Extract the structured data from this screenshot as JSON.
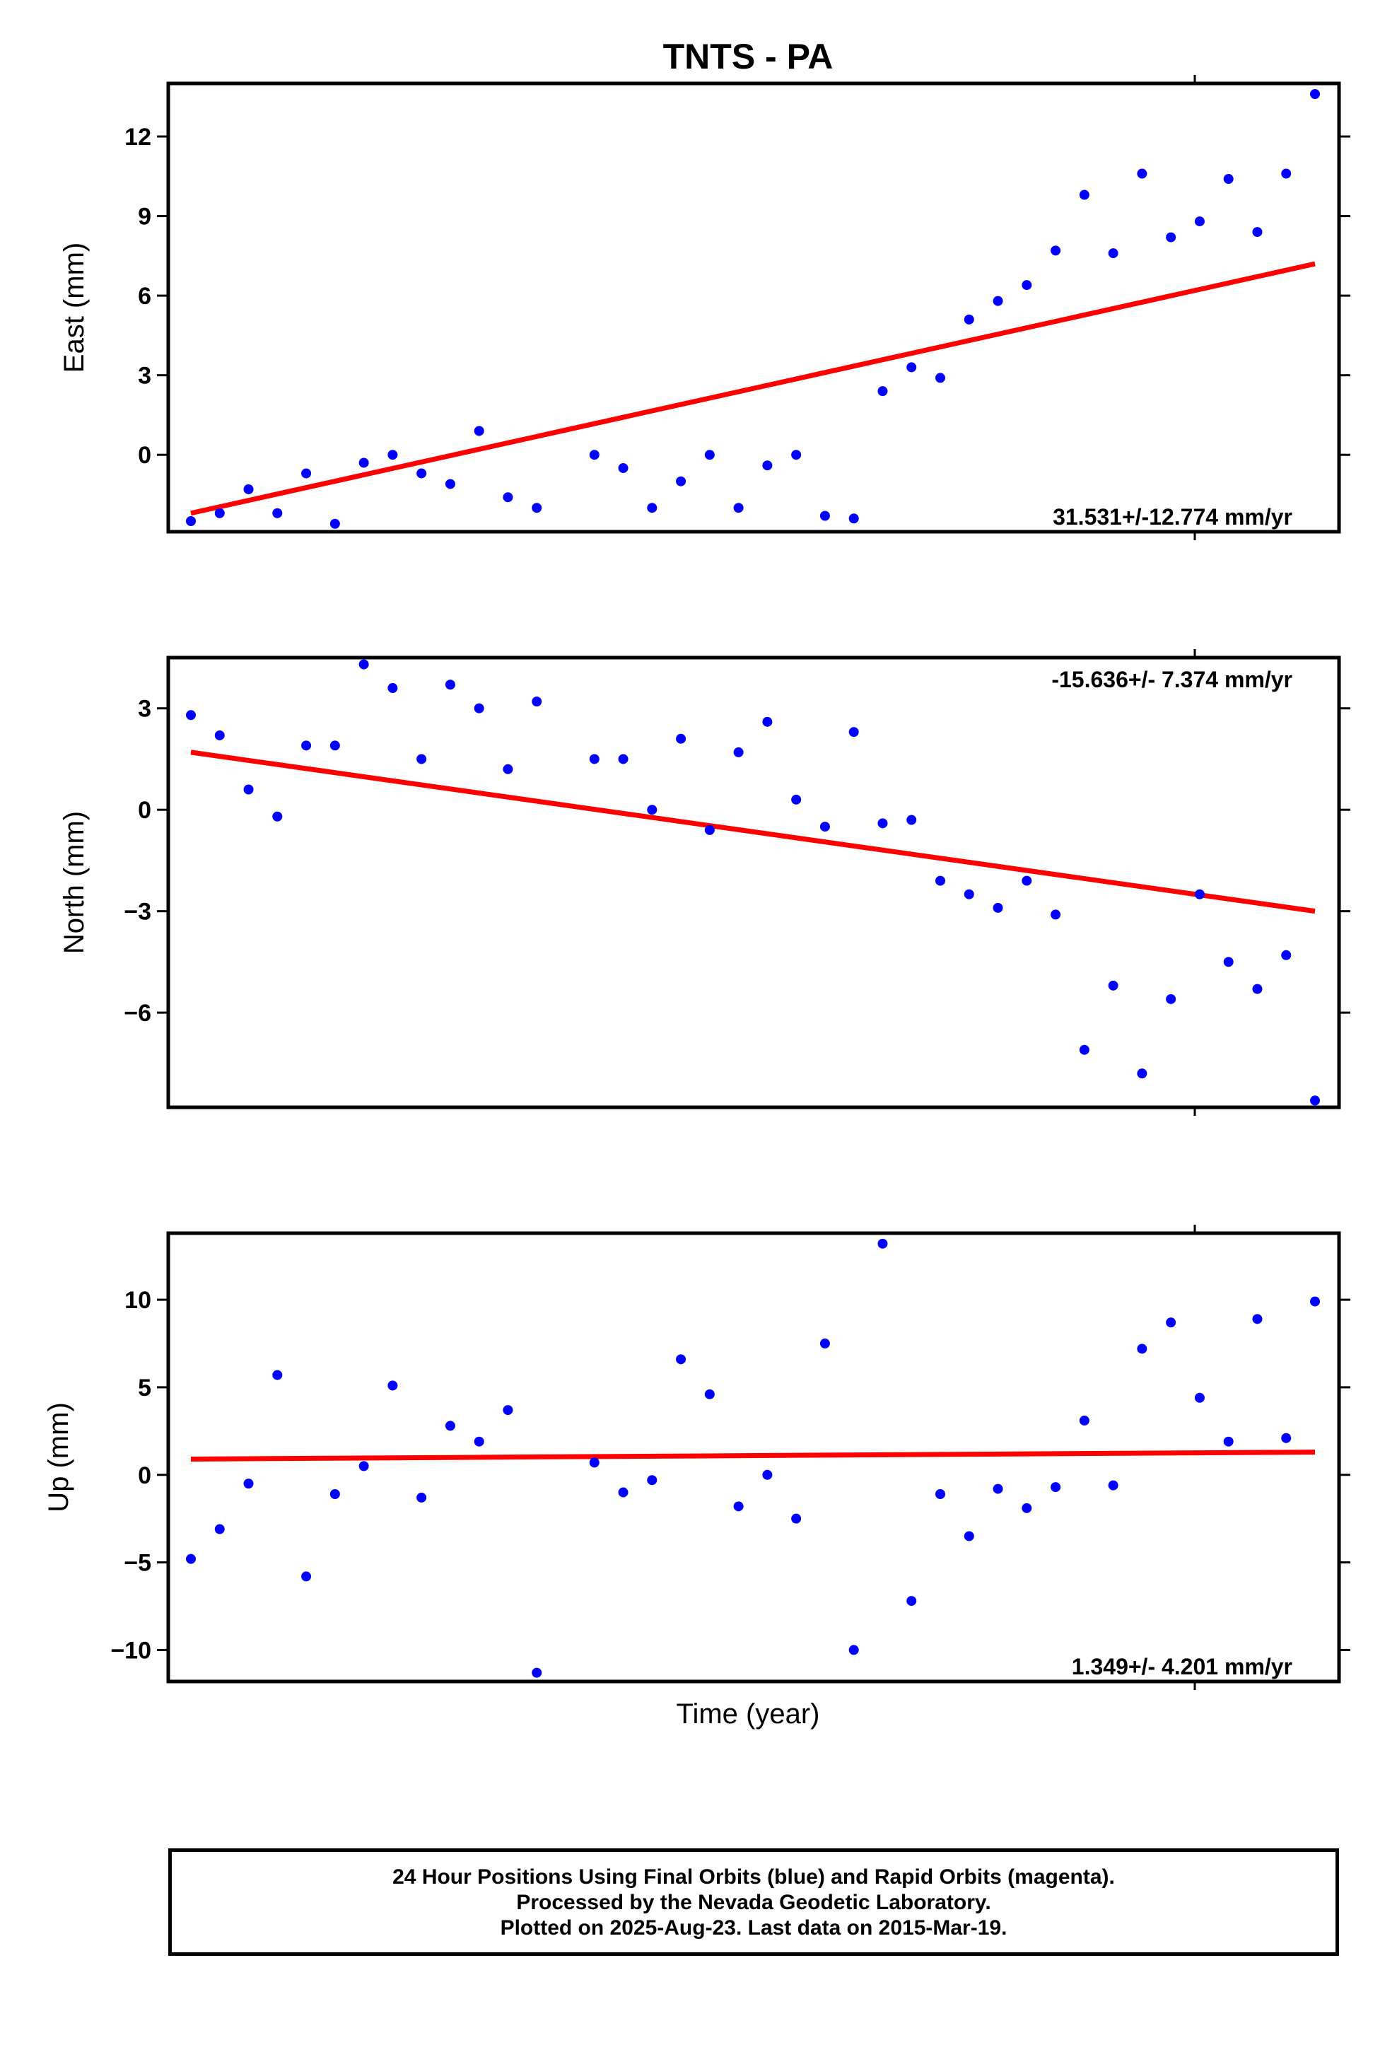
{
  "title": "TNTS - PA",
  "xlabel": "Time (year)",
  "caption": [
    "24 Hour Positions Using Final Orbits (blue) and Rapid Orbits (magenta).",
    "Processed by the Nevada Geodetic Laboratory.",
    "Plotted on 2025-Aug-23. Last data on 2015-Mar-19."
  ],
  "colors": {
    "data": "#0000ff",
    "fit": "#ff0000",
    "frame": "#000000"
  },
  "chart_data": [
    {
      "type": "scatter",
      "ylabel": "East (mm)",
      "rate_label": "31.531+/-12.774 mm/yr",
      "ylim": [
        -2.9,
        14.0
      ],
      "yticks": [
        0,
        3,
        6,
        9,
        12
      ],
      "ytick_labels": [
        "0",
        "3",
        "6",
        "9",
        "12"
      ],
      "values": [
        -2.5,
        -2.2,
        -1.3,
        -2.2,
        -0.7,
        -2.6,
        -0.3,
        0.0,
        -0.7,
        -1.1,
        0.9,
        -1.6,
        -2.0,
        null,
        0.0,
        -0.5,
        -2.0,
        -1.0,
        0.0,
        -2.0,
        -0.4,
        0.0,
        -2.3,
        -2.4,
        2.4,
        3.3,
        2.9,
        5.1,
        5.8,
        6.4,
        7.7,
        9.8,
        7.6,
        10.6,
        8.2,
        8.8,
        10.4,
        8.4,
        10.6,
        13.6
      ],
      "fit": [
        -2.2,
        7.2
      ]
    },
    {
      "type": "scatter",
      "ylabel": "North (mm)",
      "rate_label": "-15.636+/- 7.374 mm/yr",
      "ylim": [
        -8.8,
        4.5
      ],
      "yticks": [
        -6,
        -3,
        0,
        3
      ],
      "ytick_labels": [
        "−6",
        "−3",
        "0",
        "3"
      ],
      "values": [
        2.8,
        2.2,
        0.6,
        -0.2,
        1.9,
        1.9,
        4.3,
        3.6,
        1.5,
        3.7,
        3.0,
        1.2,
        3.2,
        null,
        1.5,
        1.5,
        0.0,
        2.1,
        -0.6,
        1.7,
        2.6,
        0.3,
        -0.5,
        2.3,
        -0.4,
        -0.3,
        -2.1,
        -2.5,
        -2.9,
        -2.1,
        -3.1,
        -7.1,
        -5.2,
        -7.8,
        -5.6,
        -2.5,
        -4.5,
        -5.3,
        -4.3,
        -8.6
      ],
      "fit": [
        1.7,
        -3.0
      ]
    },
    {
      "type": "scatter",
      "ylabel": "Up (mm)",
      "rate_label": "1.349+/- 4.201 mm/yr",
      "ylim": [
        -11.8,
        13.8
      ],
      "yticks": [
        -10,
        -5,
        0,
        5,
        10
      ],
      "ytick_labels": [
        "−10",
        "−5",
        "0",
        "5",
        "10"
      ],
      "values": [
        -4.8,
        -3.1,
        -0.5,
        5.7,
        -5.8,
        -1.1,
        0.5,
        5.1,
        -1.3,
        2.8,
        1.9,
        3.7,
        -11.3,
        null,
        0.7,
        -1.0,
        -0.3,
        6.6,
        4.6,
        -1.8,
        0.0,
        -2.5,
        7.5,
        -10.0,
        13.2,
        -7.2,
        -1.1,
        -3.5,
        -0.8,
        -1.9,
        -0.7,
        3.1,
        -0.6,
        7.2,
        8.7,
        4.4,
        1.9,
        8.9,
        2.1,
        9.9
      ],
      "fit": [
        0.9,
        1.3
      ]
    }
  ]
}
